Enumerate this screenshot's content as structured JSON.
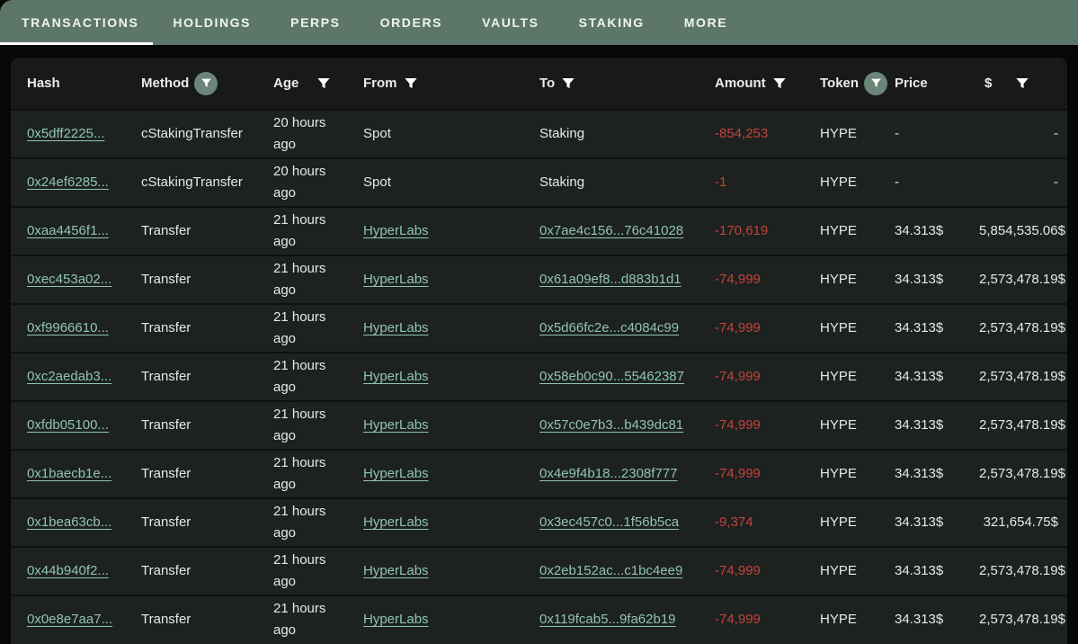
{
  "nav": {
    "tabs": [
      {
        "label": "TRANSACTIONS",
        "active": true
      },
      {
        "label": "HOLDINGS",
        "active": false
      },
      {
        "label": "PERPS",
        "active": false
      },
      {
        "label": "ORDERS",
        "active": false
      },
      {
        "label": "VAULTS",
        "active": false
      },
      {
        "label": "STAKING",
        "active": false
      },
      {
        "label": "MORE",
        "active": false
      }
    ]
  },
  "table": {
    "columns": [
      {
        "key": "hash",
        "label": "Hash",
        "filter": "none"
      },
      {
        "key": "method",
        "label": "Method",
        "filter": "circle"
      },
      {
        "key": "age",
        "label": "Age",
        "filter": "plain"
      },
      {
        "key": "from",
        "label": "From",
        "filter": "plain"
      },
      {
        "key": "to",
        "label": "To",
        "filter": "plain"
      },
      {
        "key": "amount",
        "label": "Amount",
        "filter": "plain"
      },
      {
        "key": "token",
        "label": "Token",
        "filter": "circle"
      },
      {
        "key": "price",
        "label": "Price",
        "filter": "none"
      },
      {
        "key": "usd",
        "label": "$",
        "filter": "plain"
      }
    ],
    "rows": [
      {
        "hash": "0x5dff2225...",
        "method": "cStakingTransfer",
        "age": "20 hours ago",
        "from": {
          "text": "Spot",
          "link": false
        },
        "to": {
          "text": "Staking",
          "link": false
        },
        "amount": "-854,253",
        "token": "HYPE",
        "price": "-",
        "usd": "-"
      },
      {
        "hash": "0x24ef6285...",
        "method": "cStakingTransfer",
        "age": "20 hours ago",
        "from": {
          "text": "Spot",
          "link": false
        },
        "to": {
          "text": "Staking",
          "link": false
        },
        "amount": "-1",
        "token": "HYPE",
        "price": "-",
        "usd": "-"
      },
      {
        "hash": "0xaa4456f1...",
        "method": "Transfer",
        "age": "21 hours ago",
        "from": {
          "text": "HyperLabs",
          "link": true
        },
        "to": {
          "text": "0x7ae4c156...76c41028",
          "link": true
        },
        "amount": "-170,619",
        "token": "HYPE",
        "price": "34.313$",
        "usd": "5,854,535.06$"
      },
      {
        "hash": "0xec453a02...",
        "method": "Transfer",
        "age": "21 hours ago",
        "from": {
          "text": "HyperLabs",
          "link": true
        },
        "to": {
          "text": "0x61a09ef8...d883b1d1",
          "link": true
        },
        "amount": "-74,999",
        "token": "HYPE",
        "price": "34.313$",
        "usd": "2,573,478.19$"
      },
      {
        "hash": "0xf9966610...",
        "method": "Transfer",
        "age": "21 hours ago",
        "from": {
          "text": "HyperLabs",
          "link": true
        },
        "to": {
          "text": "0x5d66fc2e...c4084c99",
          "link": true
        },
        "amount": "-74,999",
        "token": "HYPE",
        "price": "34.313$",
        "usd": "2,573,478.19$"
      },
      {
        "hash": "0xc2aedab3...",
        "method": "Transfer",
        "age": "21 hours ago",
        "from": {
          "text": "HyperLabs",
          "link": true
        },
        "to": {
          "text": "0x58eb0c90...55462387",
          "link": true
        },
        "amount": "-74,999",
        "token": "HYPE",
        "price": "34.313$",
        "usd": "2,573,478.19$"
      },
      {
        "hash": "0xfdb05100...",
        "method": "Transfer",
        "age": "21 hours ago",
        "from": {
          "text": "HyperLabs",
          "link": true
        },
        "to": {
          "text": "0x57c0e7b3...b439dc81",
          "link": true
        },
        "amount": "-74,999",
        "token": "HYPE",
        "price": "34.313$",
        "usd": "2,573,478.19$"
      },
      {
        "hash": "0x1baecb1e...",
        "method": "Transfer",
        "age": "21 hours ago",
        "from": {
          "text": "HyperLabs",
          "link": true
        },
        "to": {
          "text": "0x4e9f4b18...2308f777",
          "link": true
        },
        "amount": "-74,999",
        "token": "HYPE",
        "price": "34.313$",
        "usd": "2,573,478.19$"
      },
      {
        "hash": "0x1bea63cb...",
        "method": "Transfer",
        "age": "21 hours ago",
        "from": {
          "text": "HyperLabs",
          "link": true
        },
        "to": {
          "text": "0x3ec457c0...1f56b5ca",
          "link": true
        },
        "amount": "-9,374",
        "token": "HYPE",
        "price": "34.313$",
        "usd": "321,654.75$"
      },
      {
        "hash": "0x44b940f2...",
        "method": "Transfer",
        "age": "21 hours ago",
        "from": {
          "text": "HyperLabs",
          "link": true
        },
        "to": {
          "text": "0x2eb152ac...c1bc4ee9",
          "link": true
        },
        "amount": "-74,999",
        "token": "HYPE",
        "price": "34.313$",
        "usd": "2,573,478.19$"
      },
      {
        "hash": "0x0e8e7aa7...",
        "method": "Transfer",
        "age": "21 hours ago",
        "from": {
          "text": "HyperLabs",
          "link": true
        },
        "to": {
          "text": "0x119fcab5...9fa62b19",
          "link": true
        },
        "amount": "-74,999",
        "token": "HYPE",
        "price": "34.313$",
        "usd": "2,573,478.19$"
      }
    ]
  },
  "colors": {
    "nav_bg": "#5c7769",
    "page_bg": "#060707",
    "row_bg": "#1d211f",
    "header_bg": "#17191a",
    "link": "#8fc5b1",
    "negative_amount": "#c2443b",
    "filter_badge": "#6b8678",
    "active_tab_underline": "#ffffff"
  }
}
